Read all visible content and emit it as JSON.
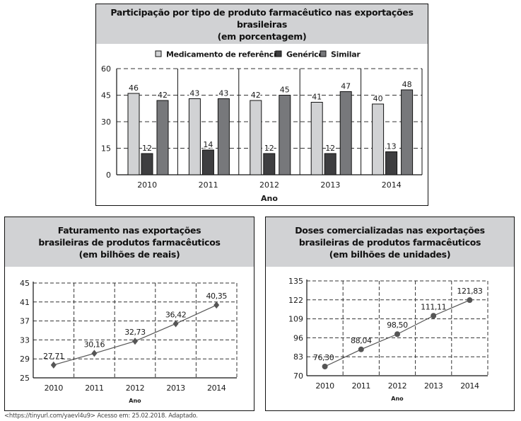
{
  "source_note": "<https://tinyurl.com/yaevl4u9> Acesso em: 25.02.2018. Adaptado.",
  "colors": {
    "referencia": "#d1d2d4",
    "generico": "#3e3e40",
    "similar": "#77787b",
    "header_bg": "#d1d2d4",
    "line": "#555555",
    "marker": "#555555"
  },
  "chart_data": [
    {
      "type": "bar",
      "title_lines": [
        "Participação por tipo de produto farmacêutico nas exportações brasileiras",
        "(em porcentagem)"
      ],
      "categories": [
        "2010",
        "2011",
        "2012",
        "2013",
        "2014"
      ],
      "series": [
        {
          "name": "Medicamento de referência",
          "values": [
            46,
            43,
            42,
            41,
            40
          ]
        },
        {
          "name": "Genérico",
          "values": [
            12,
            14,
            12,
            12,
            13
          ]
        },
        {
          "name": "Similar",
          "values": [
            42,
            43,
            45,
            47,
            48
          ]
        }
      ],
      "xlabel": "Ano",
      "ylabel": "",
      "ylim": [
        0,
        60
      ],
      "yticks": [
        0,
        15,
        30,
        45,
        60
      ],
      "grid": true,
      "legend": "top-center"
    },
    {
      "type": "line",
      "title_lines": [
        "Faturamento nas exportações",
        "brasileiras de produtos farmacêuticos",
        "(em bilhões de reais)"
      ],
      "x": [
        "2010",
        "2011",
        "2012",
        "2013",
        "2014"
      ],
      "values": [
        27.71,
        30.16,
        32.73,
        36.42,
        40.35
      ],
      "labels": [
        "27,71",
        "30,16",
        "32,73",
        "36,42",
        "40,35"
      ],
      "marker": "diamond",
      "xlabel": "Ano",
      "ylabel": "",
      "ylim": [
        25,
        45
      ],
      "yticks": [
        25,
        29,
        33,
        37,
        41,
        45
      ],
      "grid": true
    },
    {
      "type": "line",
      "title_lines": [
        "Doses comercializadas nas exportações",
        "brasileiras de produtos farmacêuticos",
        "(em bilhões de unidades)"
      ],
      "x": [
        "2010",
        "2011",
        "2012",
        "2013",
        "2014"
      ],
      "values": [
        76.3,
        88.04,
        98.5,
        111.11,
        121.83
      ],
      "labels": [
        "76,30",
        "88,04",
        "98,50",
        "111,11",
        "121,83"
      ],
      "marker": "circle",
      "xlabel": "Ano",
      "ylabel": "",
      "ylim": [
        70,
        135
      ],
      "yticks": [
        70,
        83,
        96,
        109,
        122,
        135
      ],
      "grid": true
    }
  ]
}
